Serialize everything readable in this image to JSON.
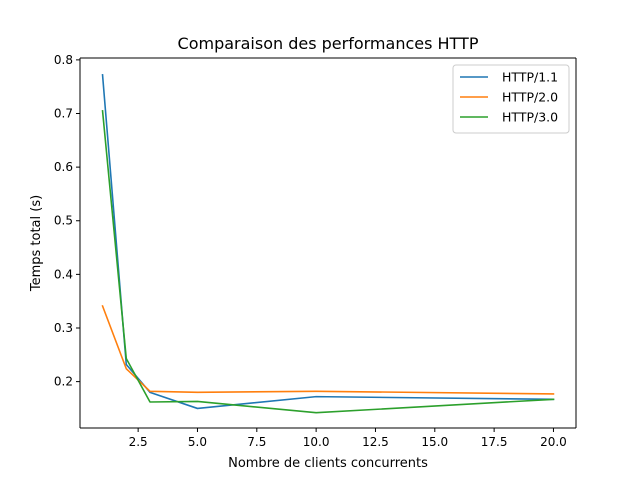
{
  "chart_data": {
    "type": "line",
    "title": "Comparaison des performances HTTP",
    "xlabel": "Nombre de clients concurrents",
    "ylabel": "Temps total (s)",
    "xlim": [
      0.05,
      20.95
    ],
    "ylim": [
      0.1135,
      0.8035
    ],
    "xticks": [
      2.5,
      5.0,
      7.5,
      10.0,
      12.5,
      15.0,
      17.5,
      20.0
    ],
    "xtick_labels": [
      "2.5",
      "5.0",
      "7.5",
      "10.0",
      "12.5",
      "15.0",
      "17.5",
      "20.0"
    ],
    "yticks": [
      0.2,
      0.3,
      0.4,
      0.5,
      0.6,
      0.7,
      0.8
    ],
    "ytick_labels": [
      "0.2",
      "0.3",
      "0.4",
      "0.5",
      "0.6",
      "0.7",
      "0.8"
    ],
    "grid": false,
    "legend_position": "top-right",
    "x": [
      1,
      2,
      3,
      5,
      10,
      20
    ],
    "series": [
      {
        "name": "HTTP/1.1",
        "color": "#1f77b4",
        "values": [
          0.772,
          0.232,
          0.18,
          0.15,
          0.172,
          0.167
        ]
      },
      {
        "name": "HTTP/2.0",
        "color": "#ff7f0e",
        "values": [
          0.341,
          0.224,
          0.182,
          0.18,
          0.182,
          0.177
        ]
      },
      {
        "name": "HTTP/3.0",
        "color": "#2ca02c",
        "values": [
          0.705,
          0.243,
          0.162,
          0.163,
          0.142,
          0.167
        ]
      }
    ]
  }
}
